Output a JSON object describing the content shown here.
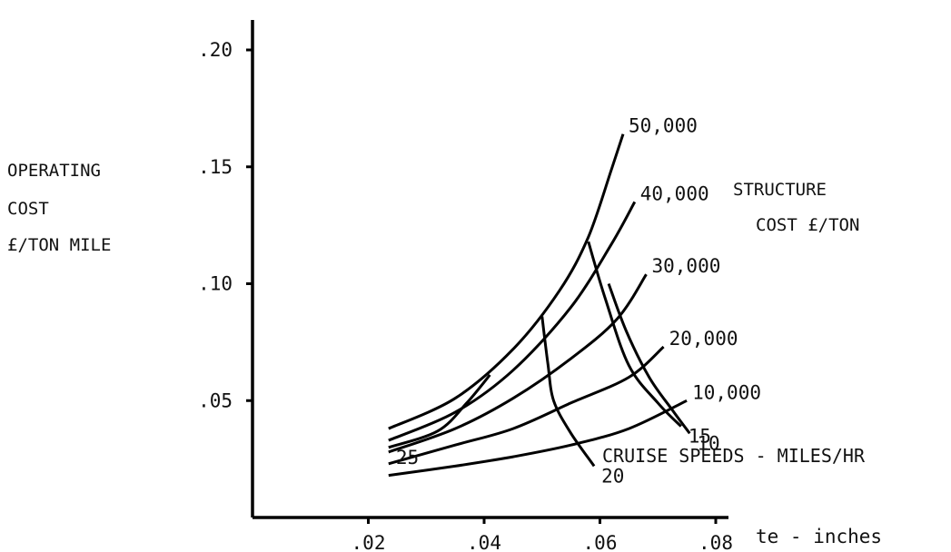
{
  "chart_data": {
    "type": "line",
    "title": "",
    "ylabel_lines": [
      "OPERATING",
      "COST",
      "£/TON MILE"
    ],
    "xlabel": "te - inches",
    "xlim": [
      0,
      0.08
    ],
    "ylim": [
      0,
      0.2
    ],
    "x_ticks": [
      {
        "value": 0.02,
        "label": ".02"
      },
      {
        "value": 0.04,
        "label": ".04"
      },
      {
        "value": 0.06,
        "label": ".06"
      },
      {
        "value": 0.08,
        "label": ".08"
      }
    ],
    "y_ticks": [
      {
        "value": 0.05,
        "label": ".05"
      },
      {
        "value": 0.1,
        "label": ".10"
      },
      {
        "value": 0.15,
        "label": ".15"
      },
      {
        "value": 0.2,
        "label": ".20"
      }
    ],
    "grid": false,
    "structure_label_lines": [
      "STRUCTURE",
      "COST £/TON"
    ],
    "speed_label": "CRUISE SPEEDS - MILES/HR",
    "series": [
      {
        "name": "50,000",
        "family": "structure_cost",
        "points": [
          [
            0.0235,
            0.038
          ],
          [
            0.035,
            0.051
          ],
          [
            0.045,
            0.072
          ],
          [
            0.053,
            0.097
          ],
          [
            0.058,
            0.12
          ],
          [
            0.062,
            0.149
          ],
          [
            0.064,
            0.164
          ]
        ]
      },
      {
        "name": "40,000",
        "family": "structure_cost",
        "points": [
          [
            0.0235,
            0.033
          ],
          [
            0.035,
            0.045
          ],
          [
            0.045,
            0.063
          ],
          [
            0.055,
            0.09
          ],
          [
            0.062,
            0.117
          ],
          [
            0.066,
            0.135
          ]
        ]
      },
      {
        "name": "30,000",
        "family": "structure_cost",
        "points": [
          [
            0.0235,
            0.028
          ],
          [
            0.035,
            0.038
          ],
          [
            0.045,
            0.051
          ],
          [
            0.055,
            0.068
          ],
          [
            0.063,
            0.085
          ],
          [
            0.068,
            0.104
          ]
        ]
      },
      {
        "name": "20,000",
        "family": "structure_cost",
        "points": [
          [
            0.0235,
            0.023
          ],
          [
            0.035,
            0.031
          ],
          [
            0.045,
            0.038
          ],
          [
            0.055,
            0.049
          ],
          [
            0.065,
            0.06
          ],
          [
            0.071,
            0.073
          ]
        ]
      },
      {
        "name": "10,000",
        "family": "structure_cost",
        "points": [
          [
            0.0235,
            0.018
          ],
          [
            0.035,
            0.022
          ],
          [
            0.045,
            0.026
          ],
          [
            0.055,
            0.031
          ],
          [
            0.065,
            0.038
          ],
          [
            0.075,
            0.05
          ]
        ]
      },
      {
        "name": "25",
        "family": "cruise_speed",
        "points": [
          [
            0.041,
            0.061
          ],
          [
            0.037,
            0.049
          ],
          [
            0.032,
            0.037
          ],
          [
            0.0235,
            0.03
          ]
        ]
      },
      {
        "name": "20",
        "family": "cruise_speed",
        "points": [
          [
            0.05,
            0.086
          ],
          [
            0.051,
            0.066
          ],
          [
            0.052,
            0.05
          ],
          [
            0.055,
            0.036
          ],
          [
            0.059,
            0.022
          ]
        ]
      },
      {
        "name": "15",
        "family": "cruise_speed",
        "points": [
          [
            0.058,
            0.118
          ],
          [
            0.061,
            0.093
          ],
          [
            0.065,
            0.065
          ],
          [
            0.07,
            0.049
          ],
          [
            0.074,
            0.039
          ]
        ]
      },
      {
        "name": "10",
        "family": "cruise_speed",
        "points": [
          [
            0.0615,
            0.1
          ],
          [
            0.0645,
            0.08
          ],
          [
            0.0685,
            0.06
          ],
          [
            0.0725,
            0.046
          ],
          [
            0.0755,
            0.036
          ]
        ]
      }
    ]
  }
}
